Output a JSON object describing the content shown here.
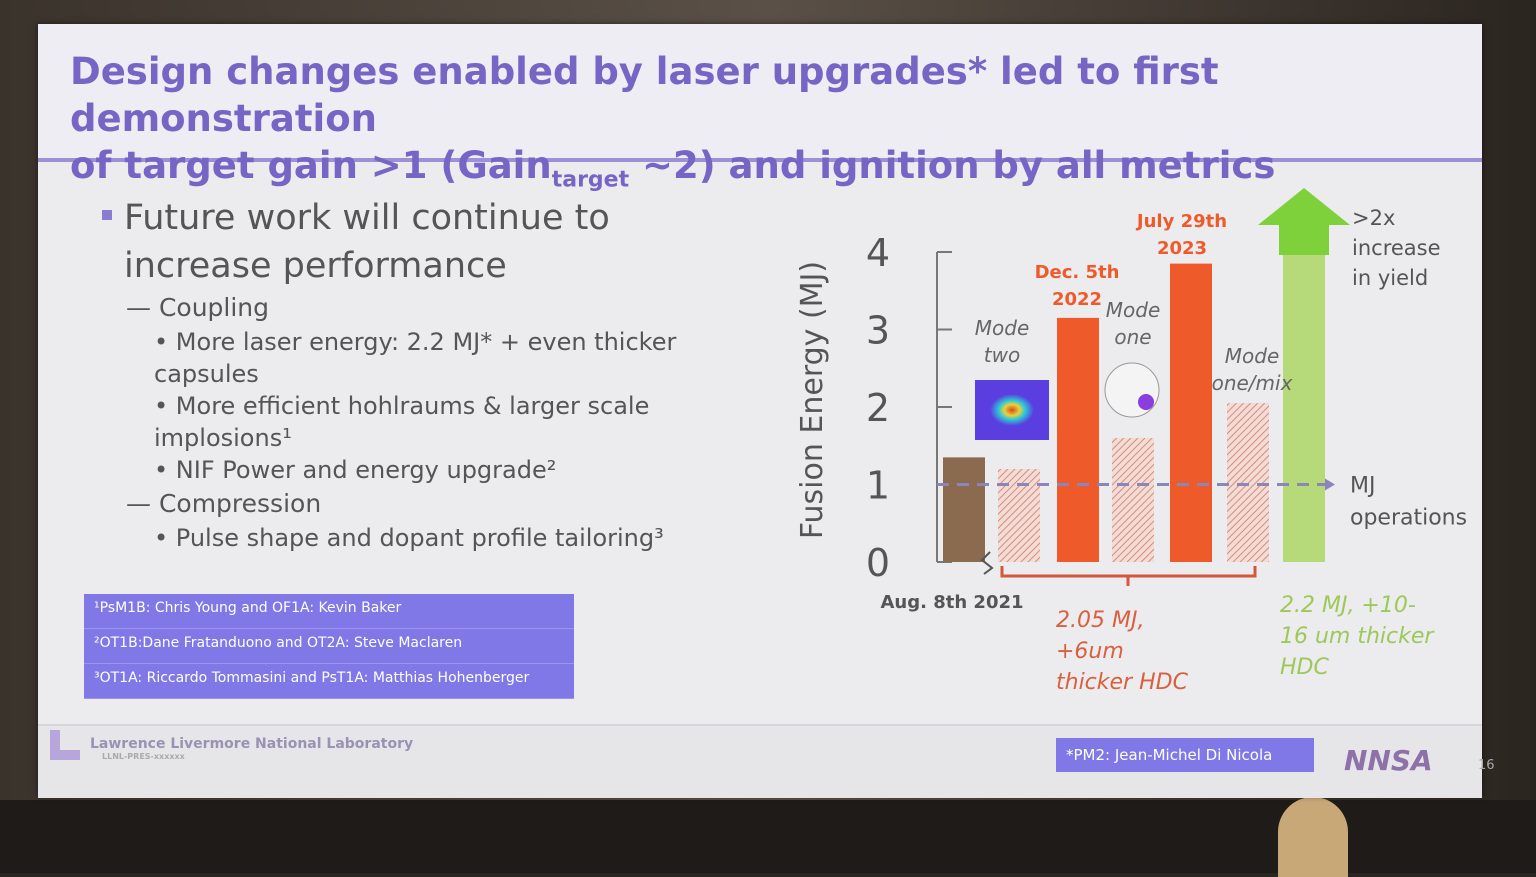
{
  "title": {
    "line1": "Design changes enabled by laser upgrades* led to first demonstration",
    "line2_pre": "of target gain >1 (Gain",
    "line2_sub": "target",
    "line2_post": " ~2) and ignition by all metrics"
  },
  "bullets": {
    "main": "Future work will continue to increase performance",
    "coupling": "— Coupling",
    "coupling_items": [
      "More laser energy: 2.2 MJ* + even thicker capsules",
      "More efficient hohlraums & larger scale implosions¹",
      "NIF Power and energy upgrade²"
    ],
    "compression": "— Compression",
    "compression_items": [
      "Pulse shape and dopant profile tailoring³"
    ]
  },
  "references": [
    "¹PsM1B: Chris Young and OF1A: Kevin Baker",
    "²OT1B:Dane Fratanduono and OT2A: Steve Maclaren",
    "³OT1A: Riccardo Tommasini and PsT1A: Matthias Hohenberger"
  ],
  "footer": {
    "lab": "Lawrence Livermore National Laboratory",
    "code": "LLNL-PRES-xxxxxx",
    "pm2": "*PM2: Jean-Michel Di Nicola",
    "nnsa": "NNSA",
    "page": "16"
  },
  "colors": {
    "title": "#7765c6",
    "orange": "#ee5a2a",
    "brown": "#8c6a4f",
    "hatch": "#e4a49a",
    "green": "#b6d97a",
    "arrow_green": "#7fd13b",
    "ref_box": "#7f78e6"
  },
  "chart_data": {
    "type": "bar",
    "ylabel": "Fusion Energy (MJ)",
    "ylim": [
      0,
      4
    ],
    "yticks": [
      "0",
      "1",
      "2",
      "3",
      "4"
    ],
    "bars": [
      {
        "kind": "solid",
        "color": "brown",
        "value": 1.35,
        "label": "Aug. 8th 2021"
      },
      {
        "kind": "hatched",
        "value": 1.2
      },
      {
        "kind": "solid",
        "color": "orange",
        "value": 3.15,
        "label": "Dec. 5th 2022"
      },
      {
        "kind": "hatched",
        "value": 1.6
      },
      {
        "kind": "solid",
        "color": "orange",
        "value": 3.85,
        "label": "July 29th 2023"
      },
      {
        "kind": "hatched",
        "value": 2.05
      }
    ],
    "annotations": {
      "mode_two": "Mode two",
      "mode_one": "Mode one",
      "mode_one_mix": "Mode one/mix",
      "reference_line": {
        "value": 1,
        "label": "MJ operations"
      },
      "arrow": ">2x increase in yield",
      "group1": "2.05 MJ, +6um thicker HDC",
      "group2": "2.2 MJ, +10-16 um thicker HDC"
    }
  }
}
